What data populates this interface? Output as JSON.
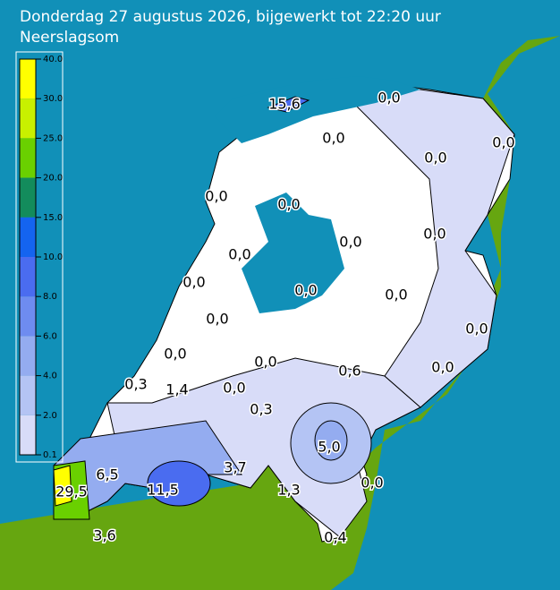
{
  "header": {
    "title": "Donderdag 27 augustus 2026, bijgewerkt tot 22:20 uur",
    "subtitle": "Neerslagsom"
  },
  "legend": {
    "labels": [
      "40.0",
      "30.0",
      "25.0",
      "20.0",
      "15.0",
      "10.0",
      "8.0",
      "6.0",
      "4.0",
      "2.0",
      "0.1"
    ]
  },
  "map": {
    "labels": [
      "15,6",
      "0,0",
      "0,0",
      "0,0",
      "0,0",
      "0,0",
      "0,0",
      "0,0",
      "0,0",
      "0,0",
      "0,0",
      "0,0",
      "0,0",
      "0,0",
      "0,0",
      "0,0",
      "0,0",
      "0,6",
      "0,0",
      "0,3",
      "1,4",
      "0,0",
      "0,3",
      "5,0",
      "3,7",
      "6,5",
      "0,0",
      "29,5",
      "11,5",
      "1,3",
      "3,6",
      "0,4"
    ]
  }
}
